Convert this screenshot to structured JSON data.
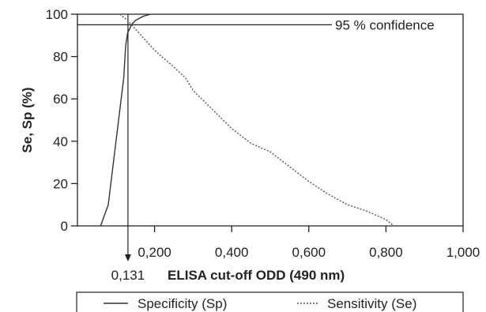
{
  "chart_data": {
    "type": "line",
    "xlabel": "ELISA cut-off ODD (490 nm)",
    "ylabel": "Se, Sp (%)",
    "xlim": [
      0,
      1.0
    ],
    "ylim": [
      0,
      100
    ],
    "x_ticks": [
      0.2,
      0.4,
      0.6,
      0.8,
      1.0
    ],
    "x_tick_labels": [
      "0,200",
      "0,400",
      "0,600",
      "0,800",
      "1,000"
    ],
    "y_ticks": [
      0,
      20,
      40,
      60,
      80,
      100
    ],
    "y_tick_labels": [
      "0",
      "20",
      "40",
      "60",
      "80",
      "100"
    ],
    "grid": false,
    "legend_position": "bottom",
    "series": [
      {
        "name": "Specificity (Sp)",
        "line_style": "solid",
        "x": [
          0.06,
          0.08,
          0.1,
          0.12,
          0.125,
          0.13,
          0.135,
          0.14,
          0.15,
          0.17,
          0.19
        ],
        "y": [
          0,
          10,
          40,
          70,
          85,
          91,
          93,
          95,
          97,
          99,
          100
        ]
      },
      {
        "name": "Sensitivity (Se)",
        "line_style": "dotted",
        "x": [
          0.11,
          0.13,
          0.16,
          0.2,
          0.25,
          0.28,
          0.3,
          0.35,
          0.4,
          0.45,
          0.5,
          0.55,
          0.6,
          0.65,
          0.7,
          0.75,
          0.8,
          0.82
        ],
        "y": [
          100,
          97,
          91,
          83,
          75,
          70,
          64,
          55,
          46,
          39,
          35,
          28,
          21,
          15,
          10,
          7,
          3,
          0
        ]
      }
    ],
    "annotations": {
      "confidence_label": "95 % confidence",
      "confidence_level": 95,
      "cutoff_value": 0.131,
      "cutoff_label": "0,131"
    }
  },
  "colors": {
    "axis": "#222222",
    "specificity": "#333333",
    "sensitivity": "#555555"
  }
}
